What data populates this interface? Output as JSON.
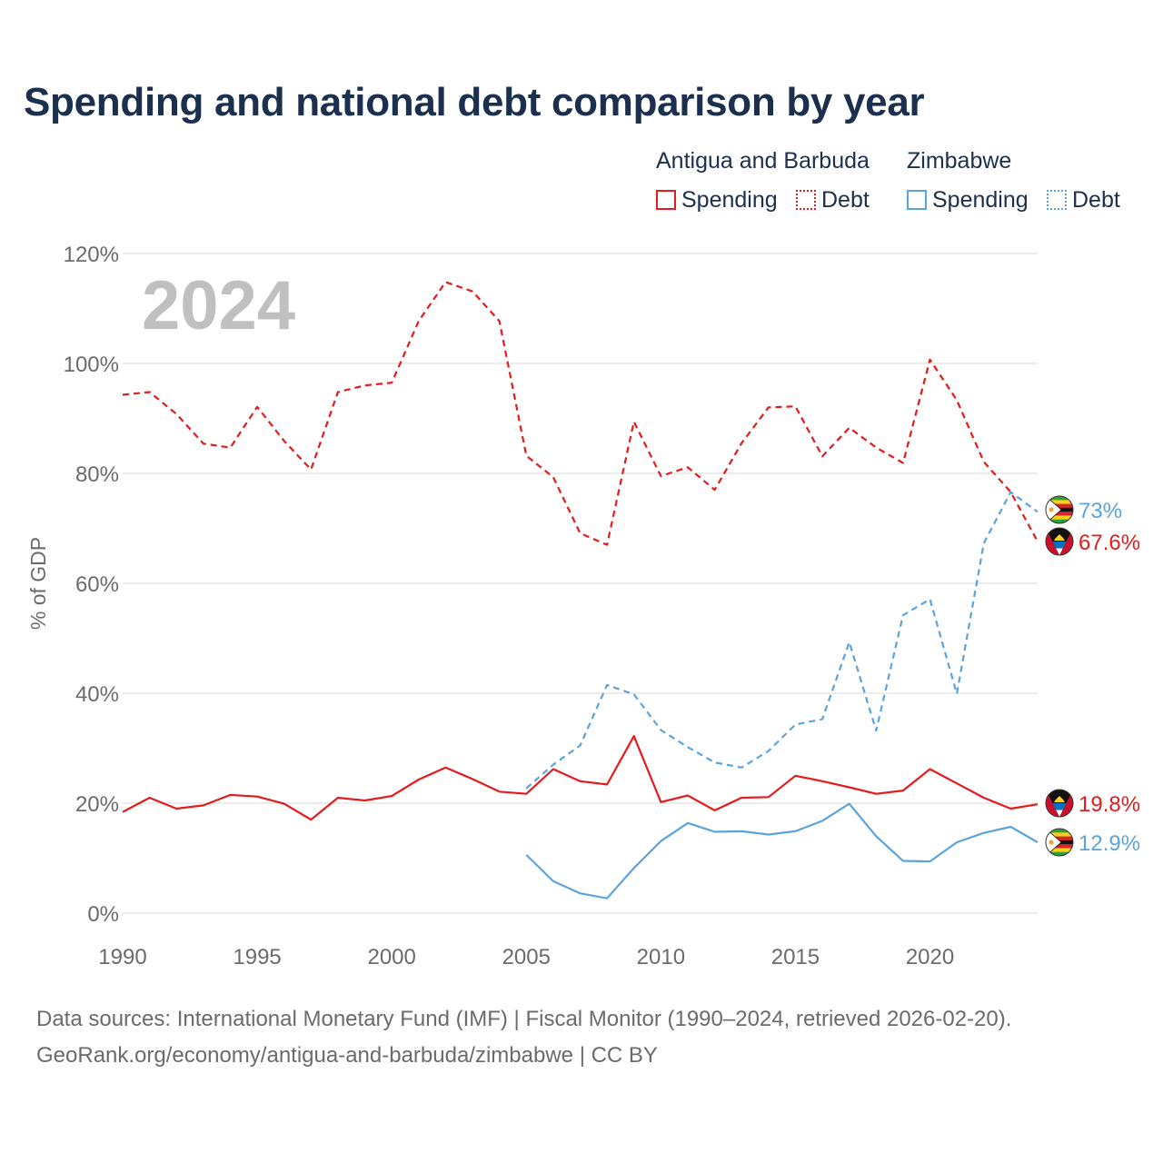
{
  "title": "Spending and national debt comparison by year",
  "legend": {
    "groups": [
      {
        "country": "Antigua and Barbuda",
        "spending_label": "Spending",
        "debt_label": "Debt"
      },
      {
        "country": "Zimbabwe",
        "spending_label": "Spending",
        "debt_label": "Debt"
      }
    ]
  },
  "source": {
    "line1": "Data sources: International Monetary Fund (IMF) | Fiscal Monitor (1990–2024, retrieved 2026-02-20).",
    "line2": "GeoRank.org/economy/antigua-and-barbuda/zimbabwe | CC BY"
  },
  "colors": {
    "antigua": "#e41a1c",
    "zimbabwe": "#5ba3dd",
    "title": "#1b2f4f",
    "axis_text": "#6b6b6b",
    "grid": "#e6e6e6",
    "year_watermark": "#c0c0c0"
  },
  "chart_data": {
    "type": "line",
    "year_label": "2024",
    "ylabel": "% of GDP",
    "xlabel": "",
    "xlim": [
      1990,
      2024
    ],
    "ylim": [
      0,
      120
    ],
    "x_ticks": [
      1990,
      1995,
      2000,
      2005,
      2010,
      2015,
      2020
    ],
    "y_ticks": [
      0,
      20,
      40,
      60,
      80,
      100,
      120
    ],
    "y_tick_labels": [
      "0%",
      "20%",
      "40%",
      "60%",
      "80%",
      "100%",
      "120%"
    ],
    "series": [
      {
        "name": "Antigua and Barbuda Debt",
        "country": "Antigua and Barbuda",
        "metric": "Debt",
        "color": "#e41a1c",
        "style": "dashed",
        "end_label": "67.6%",
        "x": [
          1990,
          1991,
          1992,
          1993,
          1994,
          1995,
          1996,
          1997,
          1998,
          1999,
          2000,
          2001,
          2002,
          2003,
          2004,
          2005,
          2006,
          2007,
          2008,
          2009,
          2010,
          2011,
          2012,
          2013,
          2014,
          2015,
          2016,
          2017,
          2018,
          2019,
          2020,
          2021,
          2022,
          2023,
          2024
        ],
        "values": [
          94.3,
          94.8,
          90.8,
          85.4,
          84.7,
          92.1,
          85.9,
          80.7,
          94.8,
          96.0,
          96.5,
          107.7,
          114.8,
          113.1,
          107.7,
          83.2,
          79.3,
          69.1,
          67.0,
          89.4,
          79.5,
          81.1,
          77.0,
          85.5,
          92.0,
          92.2,
          83.1,
          88.3,
          84.7,
          81.9,
          100.7,
          93.3,
          82.1,
          76.6,
          67.6
        ]
      },
      {
        "name": "Zimbabwe Debt",
        "country": "Zimbabwe",
        "metric": "Debt",
        "color": "#5ba3dd",
        "style": "dashed",
        "end_label": "73%",
        "x": [
          2005,
          2006,
          2007,
          2008,
          2009,
          2010,
          2011,
          2012,
          2013,
          2014,
          2015,
          2016,
          2017,
          2018,
          2019,
          2020,
          2021,
          2022,
          2023,
          2024
        ],
        "values": [
          22.7,
          27.0,
          30.5,
          41.5,
          39.8,
          33.3,
          30.2,
          27.4,
          26.5,
          29.5,
          34.3,
          35.3,
          49.3,
          33.2,
          54.2,
          57.1,
          39.9,
          67.3,
          76.6,
          73.0
        ]
      },
      {
        "name": "Antigua and Barbuda Spending",
        "country": "Antigua and Barbuda",
        "metric": "Spending",
        "color": "#e41a1c",
        "style": "solid",
        "end_label": "19.8%",
        "x": [
          1990,
          1991,
          1992,
          1993,
          1994,
          1995,
          1996,
          1997,
          1998,
          1999,
          2000,
          2001,
          2002,
          2003,
          2004,
          2005,
          2006,
          2007,
          2008,
          2009,
          2010,
          2011,
          2012,
          2013,
          2014,
          2015,
          2016,
          2017,
          2018,
          2019,
          2020,
          2021,
          2022,
          2023,
          2024
        ],
        "values": [
          18.4,
          21.0,
          19.0,
          19.6,
          21.5,
          21.2,
          19.9,
          17.0,
          21.0,
          20.5,
          21.3,
          24.3,
          26.5,
          24.4,
          22.1,
          21.7,
          26.2,
          24.0,
          23.4,
          32.2,
          20.2,
          21.4,
          18.7,
          21.0,
          21.1,
          25.0,
          24.0,
          22.9,
          21.7,
          22.3,
          26.2,
          23.6,
          21.0,
          19.0,
          19.8
        ]
      },
      {
        "name": "Zimbabwe Spending",
        "country": "Zimbabwe",
        "metric": "Spending",
        "color": "#5ba3dd",
        "style": "solid",
        "end_label": "12.9%",
        "x": [
          2005,
          2006,
          2007,
          2008,
          2009,
          2010,
          2011,
          2012,
          2013,
          2014,
          2015,
          2016,
          2017,
          2018,
          2019,
          2020,
          2021,
          2022,
          2023,
          2024
        ],
        "values": [
          10.6,
          5.8,
          3.6,
          2.7,
          8.2,
          13.1,
          16.4,
          14.8,
          14.9,
          14.3,
          14.9,
          16.8,
          19.9,
          14.0,
          9.5,
          9.4,
          12.9,
          14.6,
          15.7,
          12.9
        ]
      }
    ]
  }
}
